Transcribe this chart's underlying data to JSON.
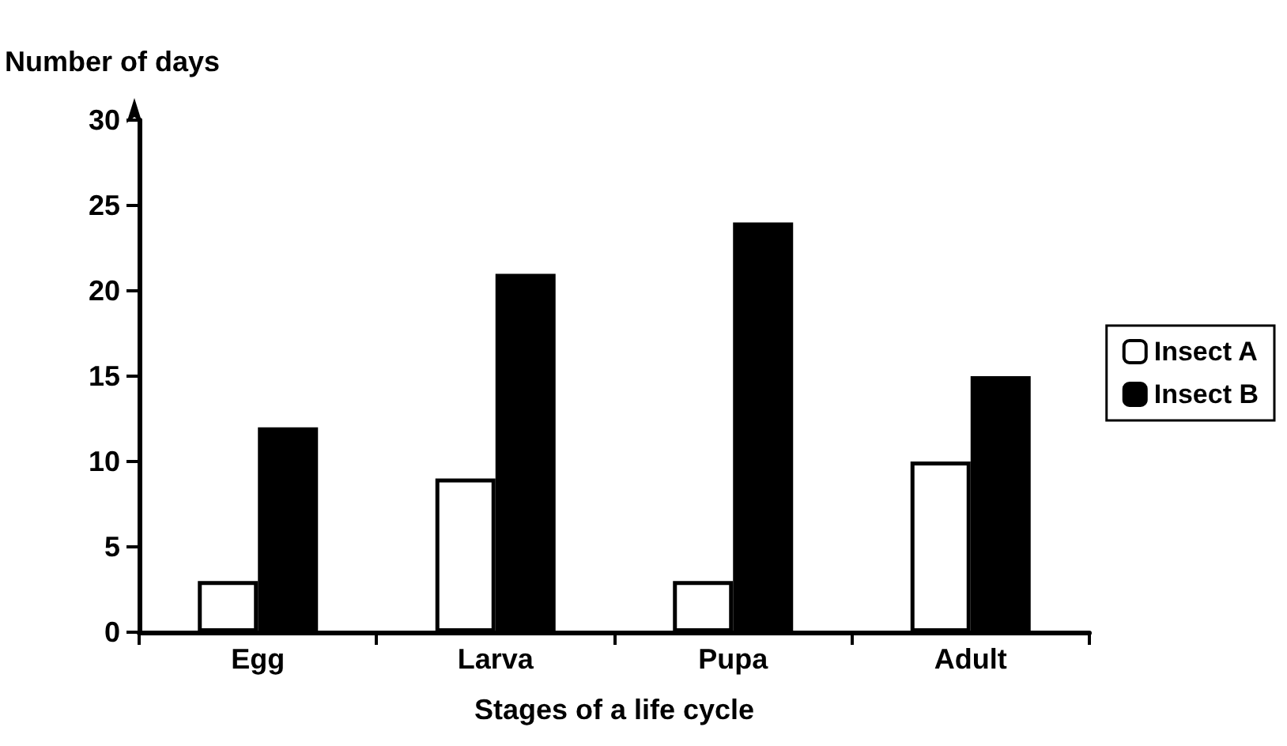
{
  "chart_data": {
    "type": "bar",
    "ylabel": "Number of days",
    "xlabel": "Stages of a life cycle",
    "categories": [
      "Egg",
      "Larva",
      "Pupa",
      "Adult"
    ],
    "series": [
      {
        "name": "Insect A",
        "color": "#ffffff",
        "values": [
          3,
          9,
          3,
          10
        ]
      },
      {
        "name": "Insect B",
        "color": "#000000",
        "values": [
          12,
          21,
          24,
          15
        ]
      }
    ],
    "ylim": [
      0,
      30
    ],
    "yticks": [
      0,
      5,
      10,
      15,
      20,
      25,
      30
    ],
    "grid": false,
    "legend": "right"
  }
}
